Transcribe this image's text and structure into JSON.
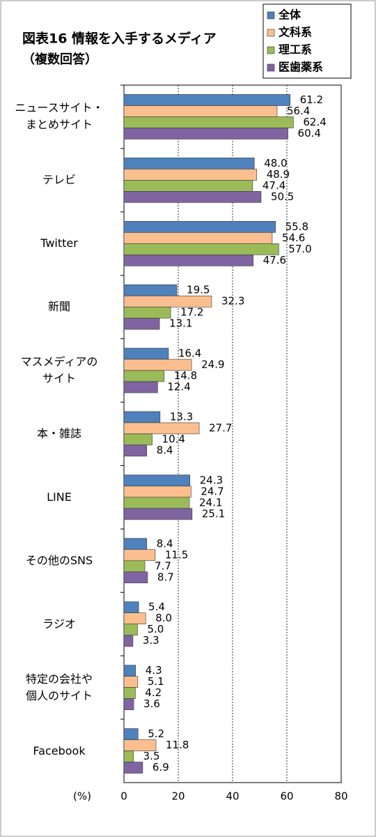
{
  "chart_data": {
    "type": "hbar",
    "title": "図表16  情報を入手するメディア",
    "subtitle": "（複数回答）",
    "xlabel": "(%)",
    "categories": [
      "ニュースサイト・\nまとめサイト",
      "テレビ",
      "Twitter",
      "新聞",
      "マスメディアの\nサイト",
      "本・雑誌",
      "LINE",
      "その他のSNS",
      "ラジオ",
      "特定の会社や\n個人のサイト",
      "Facebook"
    ],
    "series": [
      {
        "name": "全体",
        "color": "#4f81bd",
        "values": [
          61.2,
          48.0,
          55.8,
          19.5,
          16.4,
          13.3,
          24.3,
          8.4,
          5.4,
          4.3,
          5.2
        ],
        "value_labels": [
          "61.2",
          "48.0",
          "55.8",
          "19.5",
          "16.4",
          "13.3",
          "24.3",
          "8.4",
          "5.4",
          "4.3",
          "5.2"
        ]
      },
      {
        "name": "文科系",
        "color": "#fbbf8f",
        "values": [
          56.4,
          48.9,
          54.6,
          32.3,
          24.9,
          27.7,
          24.7,
          11.5,
          8.0,
          5.1,
          11.8
        ],
        "value_labels": [
          "56.4",
          "48.9",
          "54.6",
          "32.3",
          "24.9",
          "27.7",
          "24.7",
          "11.5",
          "8.0",
          "5.1",
          "11.8"
        ]
      },
      {
        "name": "理工系",
        "color": "#9bbb59",
        "values": [
          62.4,
          47.4,
          57.0,
          17.2,
          14.8,
          10.4,
          24.1,
          7.7,
          5.0,
          4.2,
          3.5
        ],
        "value_labels": [
          "62.4",
          "47.4",
          "57.0",
          "17.2",
          "14.8",
          "10.4",
          "24.1",
          "7.7",
          "5.0",
          "4.2",
          "3.5"
        ]
      },
      {
        "name": "医歯薬系",
        "color": "#8064a2",
        "values": [
          60.4,
          50.5,
          47.6,
          13.1,
          12.4,
          8.4,
          25.1,
          8.7,
          3.3,
          3.6,
          6.9
        ],
        "value_labels": [
          "60.4",
          "50.5",
          "47.6",
          "13.1",
          "12.4",
          "8.4",
          "25.1",
          "8.7",
          "3.3",
          "3.6",
          "6.9"
        ]
      }
    ],
    "xlim": [
      0,
      80
    ],
    "xticks": [
      0,
      20,
      40,
      60,
      80
    ],
    "grid": true,
    "legend": "top-right"
  }
}
